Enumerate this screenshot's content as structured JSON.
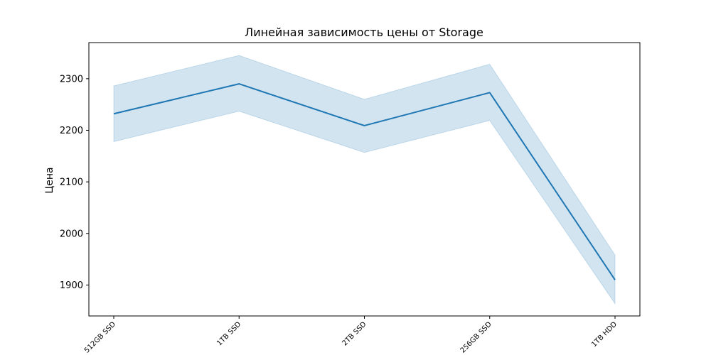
{
  "chart_data": {
    "type": "line",
    "title": "Линейная зависимость цены от Storage",
    "xlabel": "",
    "ylabel": "Цена",
    "categories": [
      "512GB SSD",
      "1TB SSD",
      "2TB SSD",
      "256GB SSD",
      "1TB HDD"
    ],
    "series": [
      {
        "values": [
          2232,
          2290,
          2209,
          2273,
          1910
        ],
        "ci_lower": [
          2178,
          2237,
          2157,
          2219,
          1864
        ],
        "ci_upper": [
          2286,
          2345,
          2260,
          2328,
          1958
        ]
      }
    ],
    "yticks": [
      1900,
      2000,
      2100,
      2200,
      2300
    ],
    "ylim": [
      1840,
      2370
    ],
    "grid": false,
    "colors": {
      "line": "#1f77b4",
      "band": "#1f77b4"
    }
  }
}
